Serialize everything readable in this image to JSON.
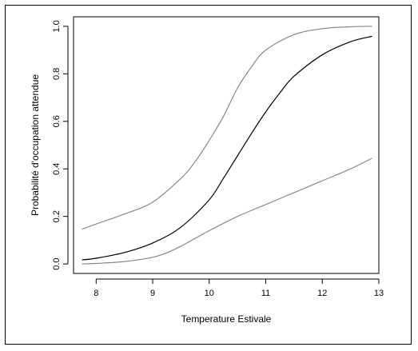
{
  "chart_data": {
    "type": "line",
    "xlabel": "Temperature Estivale",
    "ylabel": "Probabilité d'occupation attendue",
    "xlim": [
      7.6,
      13.0
    ],
    "ylim": [
      -0.04,
      1.04
    ],
    "x_ticks": [
      8,
      9,
      10,
      11,
      12,
      13
    ],
    "y_ticks": [
      0.0,
      0.2,
      0.4,
      0.6,
      0.8,
      1.0
    ],
    "x_tick_labels": [
      "8",
      "9",
      "10",
      "11",
      "12",
      "13"
    ],
    "y_tick_labels": [
      "0.0",
      "0.2",
      "0.4",
      "0.6",
      "0.8",
      "1.0"
    ],
    "grid": false,
    "series": [
      {
        "color": "#888888",
        "x": [
          7.75,
          8.0,
          8.5,
          9.0,
          9.5,
          9.75,
          10.0,
          10.25,
          10.5,
          10.75,
          11.0,
          11.5,
          12.0,
          12.5,
          12.88
        ],
        "y": [
          0.146,
          0.168,
          0.21,
          0.26,
          0.36,
          0.43,
          0.52,
          0.62,
          0.74,
          0.83,
          0.9,
          0.965,
          0.99,
          0.998,
          1.0
        ]
      },
      {
        "color": "#000000",
        "x": [
          7.75,
          8.0,
          8.5,
          9.0,
          9.5,
          10.0,
          10.25,
          10.5,
          10.75,
          11.0,
          11.25,
          11.5,
          12.0,
          12.5,
          12.88
        ],
        "y": [
          0.017,
          0.024,
          0.048,
          0.088,
          0.155,
          0.27,
          0.36,
          0.455,
          0.55,
          0.64,
          0.72,
          0.79,
          0.88,
          0.935,
          0.958
        ]
      },
      {
        "color": "#888888",
        "x": [
          7.75,
          8.0,
          8.5,
          9.0,
          9.25,
          9.5,
          10.0,
          10.5,
          11.0,
          11.5,
          12.0,
          12.5,
          12.88
        ],
        "y": [
          0.0,
          0.002,
          0.01,
          0.028,
          0.047,
          0.075,
          0.14,
          0.2,
          0.25,
          0.3,
          0.35,
          0.4,
          0.445
        ]
      }
    ]
  }
}
